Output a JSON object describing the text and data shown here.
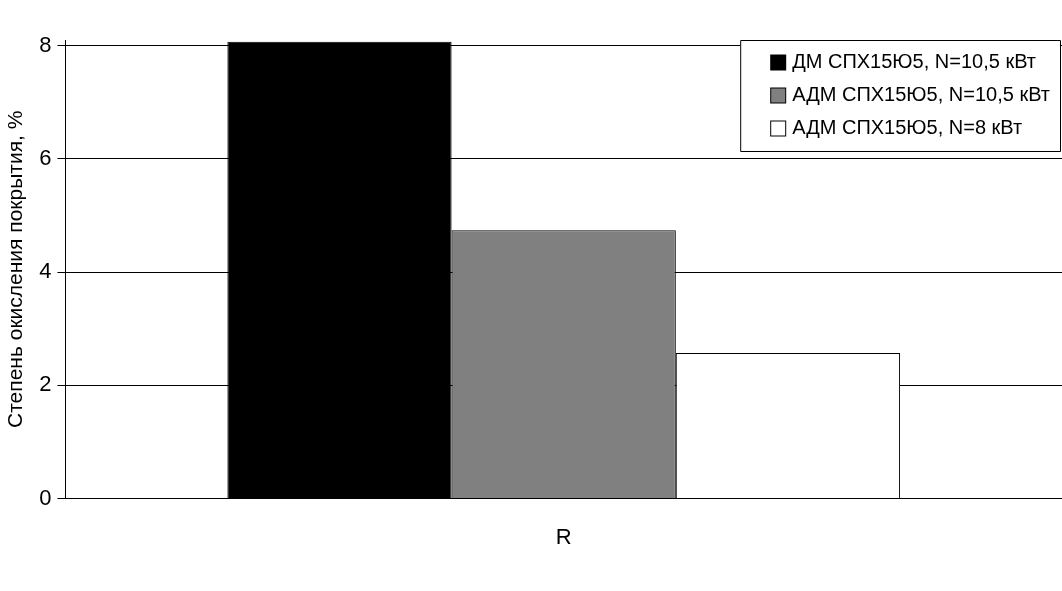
{
  "chart_data": {
    "type": "bar",
    "ylabel": "Степень окисления покрытия, %",
    "categories": [
      "R"
    ],
    "series": [
      {
        "name": "ДМ СПХ15Ю5, N=10,5 кВт",
        "color": "#000000",
        "values": [
          8.07
        ]
      },
      {
        "name": "АДМ СПХ15Ю5, N=10,5 кВт",
        "color": "#808080",
        "values": [
          4.74
        ]
      },
      {
        "name": "АДМ СПХ15Ю5, N=8 кВт",
        "color": "#ffffff",
        "values": [
          2.57
        ]
      }
    ],
    "ylim": [
      0,
      8.1
    ],
    "yticks": [
      0,
      2,
      4,
      6,
      8
    ],
    "grid": "y",
    "legend": "top right"
  }
}
